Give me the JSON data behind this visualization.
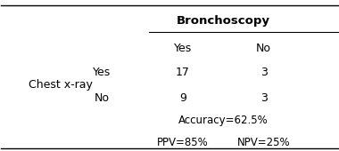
{
  "title_col": "Bronchoscopy",
  "col_headers": [
    "Yes",
    "No"
  ],
  "row_label_main": "Chest x-ray",
  "row_labels": [
    "Yes",
    "No"
  ],
  "cell_values": [
    [
      "17",
      "3"
    ],
    [
      "9",
      "3"
    ]
  ],
  "accuracy": "Accuracy=62.5%",
  "ppv": "PPV=85%",
  "npv": "NPV=25%",
  "bg_color": "#ffffff",
  "text_color": "#000000",
  "font_size": 9,
  "header_font_size": 9.5
}
